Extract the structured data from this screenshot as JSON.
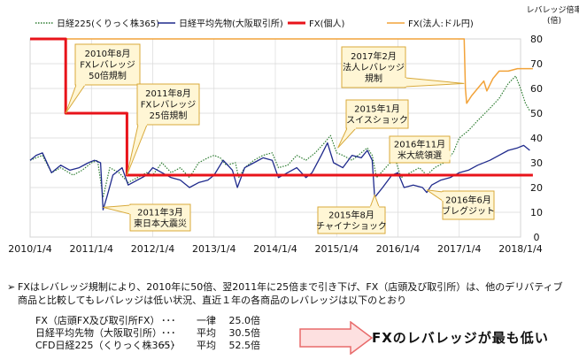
{
  "chart_data": {
    "type": "line",
    "x_ticks": [
      "2010/1/4",
      "2011/1/4",
      "2012/1/4",
      "2013/1/4",
      "2014/1/4",
      "2015/1/4",
      "2016/1/4",
      "2017/1/4",
      "2018/1/4"
    ],
    "ylim": [
      0,
      80
    ],
    "y_ticks": [
      0,
      10,
      20,
      30,
      40,
      50,
      60,
      70,
      80
    ],
    "ylabel": "レバレッジ倍率\n(倍)",
    "legend": {
      "placement": "top",
      "entries": [
        {
          "name": "日経225(くりっく株365)",
          "color": "#2e7d32",
          "style": "dotted"
        },
        {
          "name": "日経平均先物(大阪取引所)",
          "color": "#1f2a8c",
          "style": "solid"
        },
        {
          "name": "FX(個人)",
          "color": "#e8131a",
          "style": "solid-thick"
        },
        {
          "name": "FX(法人:ドル円)",
          "color": "#f2a33a",
          "style": "solid"
        }
      ]
    },
    "series": [
      {
        "name": "日経225(くりっく株365)",
        "color": "#2e7d32",
        "points": [
          [
            2010.0,
            31
          ],
          [
            2010.2,
            33
          ],
          [
            2010.35,
            26
          ],
          [
            2010.5,
            28
          ],
          [
            2010.7,
            25
          ],
          [
            2010.85,
            27
          ],
          [
            2011.0,
            30
          ],
          [
            2011.1,
            31
          ],
          [
            2011.19,
            16
          ],
          [
            2011.3,
            28
          ],
          [
            2011.45,
            26
          ],
          [
            2011.6,
            22
          ],
          [
            2011.75,
            24
          ],
          [
            2011.9,
            26
          ],
          [
            2012.0,
            25
          ],
          [
            2012.15,
            30
          ],
          [
            2012.3,
            26
          ],
          [
            2012.45,
            28
          ],
          [
            2012.6,
            24
          ],
          [
            2012.75,
            30
          ],
          [
            2012.9,
            32
          ],
          [
            2013.0,
            33
          ],
          [
            2013.1,
            32
          ],
          [
            2013.2,
            29
          ],
          [
            2013.35,
            30
          ],
          [
            2013.4,
            24
          ],
          [
            2013.5,
            28
          ],
          [
            2013.65,
            31
          ],
          [
            2013.8,
            33
          ],
          [
            2013.95,
            34
          ],
          [
            2014.05,
            28
          ],
          [
            2014.2,
            29
          ],
          [
            2014.35,
            33
          ],
          [
            2014.5,
            31
          ],
          [
            2014.65,
            34
          ],
          [
            2014.8,
            38
          ],
          [
            2014.9,
            41
          ],
          [
            2015.0,
            34
          ],
          [
            2015.1,
            33
          ],
          [
            2015.25,
            31
          ],
          [
            2015.4,
            34
          ],
          [
            2015.5,
            36
          ],
          [
            2015.58,
            33
          ],
          [
            2015.65,
            24
          ],
          [
            2015.8,
            28
          ],
          [
            2015.95,
            32
          ],
          [
            2016.05,
            24
          ],
          [
            2016.2,
            26
          ],
          [
            2016.35,
            28
          ],
          [
            2016.47,
            25
          ],
          [
            2016.6,
            28
          ],
          [
            2016.75,
            30
          ],
          [
            2016.9,
            34
          ],
          [
            2017.0,
            40
          ],
          [
            2017.15,
            43
          ],
          [
            2017.3,
            47
          ],
          [
            2017.5,
            52
          ],
          [
            2017.65,
            56
          ],
          [
            2017.8,
            62
          ],
          [
            2017.92,
            65
          ],
          [
            2018.0,
            60
          ],
          [
            2018.08,
            54
          ],
          [
            2018.15,
            51
          ]
        ]
      },
      {
        "name": "日経平均先物(大阪取引所)",
        "color": "#1f2a8c",
        "points": [
          [
            2010.0,
            31
          ],
          [
            2010.1,
            33
          ],
          [
            2010.2,
            34
          ],
          [
            2010.35,
            26
          ],
          [
            2010.5,
            29
          ],
          [
            2010.65,
            27
          ],
          [
            2010.8,
            28
          ],
          [
            2010.95,
            30
          ],
          [
            2011.05,
            31
          ],
          [
            2011.15,
            30
          ],
          [
            2011.19,
            11
          ],
          [
            2011.25,
            16
          ],
          [
            2011.35,
            25
          ],
          [
            2011.5,
            28
          ],
          [
            2011.6,
            21
          ],
          [
            2011.75,
            23
          ],
          [
            2011.9,
            25
          ],
          [
            2012.0,
            28
          ],
          [
            2012.15,
            26
          ],
          [
            2012.3,
            24
          ],
          [
            2012.45,
            23
          ],
          [
            2012.6,
            20
          ],
          [
            2012.75,
            22
          ],
          [
            2012.9,
            23
          ],
          [
            2013.0,
            25
          ],
          [
            2013.15,
            31
          ],
          [
            2013.3,
            27
          ],
          [
            2013.38,
            20
          ],
          [
            2013.5,
            28
          ],
          [
            2013.65,
            30
          ],
          [
            2013.8,
            32
          ],
          [
            2013.95,
            31
          ],
          [
            2014.05,
            24
          ],
          [
            2014.2,
            26
          ],
          [
            2014.35,
            28
          ],
          [
            2014.5,
            24
          ],
          [
            2014.6,
            26
          ],
          [
            2014.75,
            33
          ],
          [
            2014.85,
            38
          ],
          [
            2014.95,
            30
          ],
          [
            2015.1,
            28
          ],
          [
            2015.25,
            33
          ],
          [
            2015.4,
            32
          ],
          [
            2015.5,
            35
          ],
          [
            2015.58,
            31
          ],
          [
            2015.62,
            16
          ],
          [
            2015.75,
            20
          ],
          [
            2015.9,
            25
          ],
          [
            2016.0,
            26
          ],
          [
            2016.1,
            20
          ],
          [
            2016.25,
            21
          ],
          [
            2016.4,
            20
          ],
          [
            2016.47,
            18
          ],
          [
            2016.55,
            21
          ],
          [
            2016.7,
            23
          ],
          [
            2016.85,
            24
          ],
          [
            2017.0,
            26
          ],
          [
            2017.15,
            27
          ],
          [
            2017.3,
            29
          ],
          [
            2017.5,
            31
          ],
          [
            2017.65,
            33
          ],
          [
            2017.8,
            35
          ],
          [
            2017.95,
            36
          ],
          [
            2018.05,
            37
          ],
          [
            2018.15,
            35
          ]
        ]
      },
      {
        "name": "FX(個人)",
        "color": "#e8131a",
        "points": [
          [
            2010.0,
            80
          ],
          [
            2010.58,
            80
          ],
          [
            2010.58,
            50
          ],
          [
            2011.58,
            50
          ],
          [
            2011.58,
            25
          ],
          [
            2018.2,
            25
          ]
        ]
      },
      {
        "name": "FX(法人:ドル円)",
        "color": "#f2a33a",
        "points": [
          [
            2010.0,
            80
          ],
          [
            2017.08,
            80
          ],
          [
            2017.1,
            60
          ],
          [
            2017.12,
            54
          ],
          [
            2017.2,
            57
          ],
          [
            2017.3,
            60
          ],
          [
            2017.4,
            63
          ],
          [
            2017.45,
            59
          ],
          [
            2017.55,
            64
          ],
          [
            2017.65,
            67
          ],
          [
            2017.8,
            67
          ],
          [
            2017.95,
            68
          ],
          [
            2018.1,
            68
          ],
          [
            2018.2,
            68
          ]
        ]
      }
    ],
    "annotations": [
      {
        "text": "2010年8月\nFXレバレッジ\n50倍規制",
        "at": [
          2010.58,
          50
        ]
      },
      {
        "text": "2011年8月\nFXレバレッジ\n25倍規制",
        "at": [
          2011.58,
          25
        ]
      },
      {
        "text": "2017年2月\n法人レバレッジ\n規制",
        "at": [
          2017.08,
          62
        ]
      },
      {
        "text": "2015年1月\nスイスショック",
        "at": [
          2015.02,
          36
        ]
      },
      {
        "text": "2016年11月\n米大統領選",
        "at": [
          2016.85,
          33
        ]
      },
      {
        "text": "2011年3月\n東日本大震災",
        "at": [
          2011.19,
          12
        ]
      },
      {
        "text": "2015年8月\nチャイナショック",
        "at": [
          2015.62,
          17
        ]
      },
      {
        "text": "2016年6月\nブレグジット",
        "at": [
          2016.47,
          19
        ]
      }
    ]
  },
  "text": {
    "bullet_mark": "➢",
    "bullet": "FXはレバレッジ規制により、2010年に50倍、翌2011年に25倍まで引き下げ、FX（店頭及び取引所）は、他のデリバティブ商品と比較してもレバレッジは低い状況、直近１年の各商品のレバレッジは以下のとおり",
    "rows": [
      {
        "name": "FX（店頭FX及び取引所FX）",
        "dots": "･･･",
        "kind": "一律",
        "value": "25.0倍"
      },
      {
        "name": "日経平均先物（大阪取引所）",
        "dots": "･･･",
        "kind": "平均",
        "value": "30.5倍"
      },
      {
        "name": "CFD日経225（くりっく株365）",
        "dots": "･･･",
        "kind": "平均",
        "value": "52.5倍"
      }
    ],
    "callout": "FXのレバレッジが最も低い"
  },
  "colors": {
    "callout_fill": "#fde0e0",
    "callout_border": "#e86a6a",
    "annotation_fill": "#fff6d5",
    "annotation_border": "#d8a93a"
  }
}
